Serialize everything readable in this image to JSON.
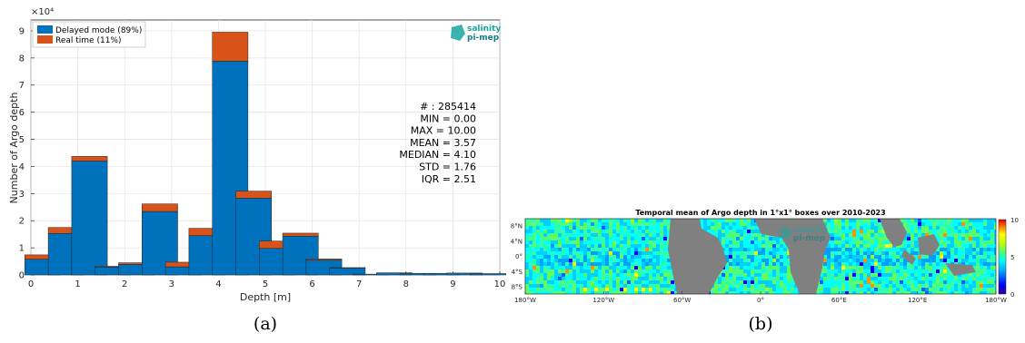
{
  "colors": {
    "delayed": "#0072BD",
    "realtime": "#D95319",
    "land": "#808080",
    "logo": "#1aa6a0"
  },
  "chart_data": [
    {
      "type": "bar",
      "stacked": true,
      "panel_label": "(a)",
      "exponent_label": "×10⁴",
      "xlabel": "Depth [m]",
      "ylabel": "Number of Argo depth",
      "xlim": [
        0,
        10
      ],
      "ylim": [
        0,
        9.4
      ],
      "xticks": [
        "0",
        "1",
        "2",
        "3",
        "4",
        "5",
        "6",
        "7",
        "8",
        "9",
        "10"
      ],
      "yticks": [
        "0",
        "1",
        "2",
        "3",
        "4",
        "5",
        "6",
        "7",
        "8",
        "9"
      ],
      "grid": true,
      "legend_placement": "top-left",
      "x": [
        0.25,
        0.75,
        1.25,
        1.75,
        2.25,
        2.75,
        3.25,
        3.75,
        4.25,
        4.75,
        5.25,
        5.75,
        6.25,
        6.75,
        7.25,
        7.75,
        8.25,
        8.75,
        9.25,
        9.75
      ],
      "series": [
        {
          "name": "Delayed mode (89%)",
          "values": [
            0.58,
            1.53,
            4.2,
            0.29,
            0.39,
            2.34,
            0.3,
            1.45,
            7.88,
            2.83,
            0.98,
            1.43,
            0.55,
            0.26,
            0.03,
            0.08,
            0.06,
            0.06,
            0.07,
            0.05
          ]
        },
        {
          "name": "Real time (11%)",
          "values": [
            0.16,
            0.22,
            0.17,
            0.03,
            0.06,
            0.28,
            0.17,
            0.27,
            1.07,
            0.26,
            0.27,
            0.11,
            0.04,
            0.01,
            0.0,
            0.0,
            0.0,
            0.0,
            0.0,
            0.0
          ]
        }
      ],
      "stats": [
        "# : 285414",
        "MIN = 0.00",
        "MAX =  10.00",
        "MEAN = 3.57",
        "MEDIAN = 4.10",
        "STD = 1.76",
        "IQR = 2.51"
      ],
      "logo_text": [
        "salinity",
        "pi-mep"
      ]
    },
    {
      "type": "heatmap",
      "panel_label": "(b)",
      "title": "Temporal mean of Argo depth in 1°x1° boxes over 2010-2023",
      "xticks": [
        "180°W",
        "120°W",
        "60°W",
        "0°",
        "60°E",
        "120°E",
        "180°W"
      ],
      "yticks": [
        "8°N",
        "4°N",
        "0°",
        "4°S",
        "8°S"
      ],
      "colorbar": {
        "min": 0,
        "max": 10,
        "ticks": [
          "10",
          "5",
          "0"
        ]
      },
      "logo_text": [
        "salinity",
        "pi-mep"
      ]
    }
  ]
}
